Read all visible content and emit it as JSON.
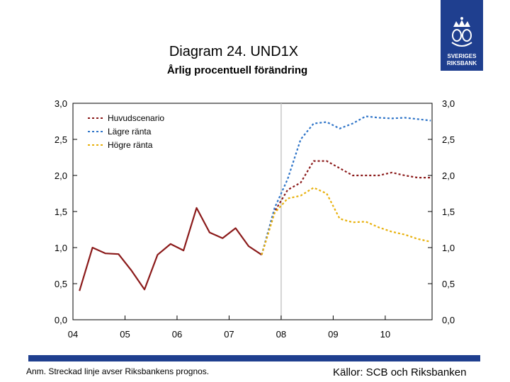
{
  "title": "Diagram 24. UND1X",
  "subtitle": "Årlig procentuell förändring",
  "logo": {
    "line1": "SVERIGES",
    "line2": "RIKSBANK",
    "icon": "crown-emblem-icon"
  },
  "colors": {
    "brand": "#1f3f8f",
    "huvud": "#8b1a1a",
    "lagre": "#2e74c8",
    "hogre": "#e8b00a",
    "grid": "#c8c8c8"
  },
  "footer": {
    "note": "Anm. Streckad linje avser Riksbankens prognos.",
    "source": "Källor: SCB och Riksbanken"
  },
  "chart_data": {
    "type": "line",
    "x_tick_labels": [
      "04",
      "05",
      "06",
      "07",
      "08",
      "09",
      "10"
    ],
    "xlim": [
      2004,
      2010.9
    ],
    "ylim": [
      0,
      3
    ],
    "y_ticks": [
      0,
      0.5,
      1,
      1.5,
      2,
      2.5,
      3
    ],
    "y_tick_labels": [
      "0,0",
      "0,5",
      "1,0",
      "1,5",
      "2,0",
      "2,5",
      "3,0"
    ],
    "forecast_divider_x": 2008,
    "grid": false,
    "legend_position": "top-left",
    "series": [
      {
        "name": "",
        "style": "solid",
        "color_key": "huvud",
        "points": [
          [
            2004.125,
            0.4
          ],
          [
            2004.375,
            1.0
          ],
          [
            2004.625,
            0.92
          ],
          [
            2004.875,
            0.91
          ],
          [
            2005.125,
            0.68
          ],
          [
            2005.375,
            0.42
          ],
          [
            2005.625,
            0.9
          ],
          [
            2005.875,
            1.05
          ],
          [
            2006.125,
            0.96
          ],
          [
            2006.375,
            1.55
          ],
          [
            2006.625,
            1.21
          ],
          [
            2006.875,
            1.13
          ],
          [
            2007.125,
            1.27
          ],
          [
            2007.375,
            1.02
          ],
          [
            2007.625,
            0.9
          ]
        ]
      },
      {
        "name": "Huvudscenario",
        "style": "dashed",
        "color_key": "huvud",
        "points": [
          [
            2007.625,
            0.9
          ],
          [
            2007.875,
            1.5
          ],
          [
            2008.125,
            1.8
          ],
          [
            2008.375,
            1.9
          ],
          [
            2008.625,
            2.2
          ],
          [
            2008.875,
            2.2
          ],
          [
            2009.125,
            2.1
          ],
          [
            2009.375,
            2.0
          ],
          [
            2009.625,
            2.0
          ],
          [
            2009.875,
            2.0
          ],
          [
            2010.125,
            2.04
          ],
          [
            2010.375,
            2.0
          ],
          [
            2010.625,
            1.97
          ],
          [
            2010.875,
            1.97
          ]
        ]
      },
      {
        "name": "Lägre ränta",
        "style": "dashed",
        "color_key": "lagre",
        "points": [
          [
            2007.625,
            0.9
          ],
          [
            2007.875,
            1.55
          ],
          [
            2008.125,
            1.95
          ],
          [
            2008.375,
            2.5
          ],
          [
            2008.625,
            2.72
          ],
          [
            2008.875,
            2.74
          ],
          [
            2009.125,
            2.65
          ],
          [
            2009.375,
            2.72
          ],
          [
            2009.625,
            2.82
          ],
          [
            2009.875,
            2.8
          ],
          [
            2010.125,
            2.79
          ],
          [
            2010.375,
            2.8
          ],
          [
            2010.625,
            2.78
          ],
          [
            2010.875,
            2.76
          ]
        ]
      },
      {
        "name": "Högre ränta",
        "style": "dashed",
        "color_key": "hogre",
        "points": [
          [
            2007.625,
            0.9
          ],
          [
            2007.875,
            1.48
          ],
          [
            2008.125,
            1.68
          ],
          [
            2008.375,
            1.72
          ],
          [
            2008.625,
            1.83
          ],
          [
            2008.875,
            1.75
          ],
          [
            2009.125,
            1.4
          ],
          [
            2009.375,
            1.35
          ],
          [
            2009.625,
            1.36
          ],
          [
            2009.875,
            1.28
          ],
          [
            2010.125,
            1.22
          ],
          [
            2010.375,
            1.18
          ],
          [
            2010.625,
            1.12
          ],
          [
            2010.875,
            1.08
          ]
        ]
      }
    ]
  }
}
